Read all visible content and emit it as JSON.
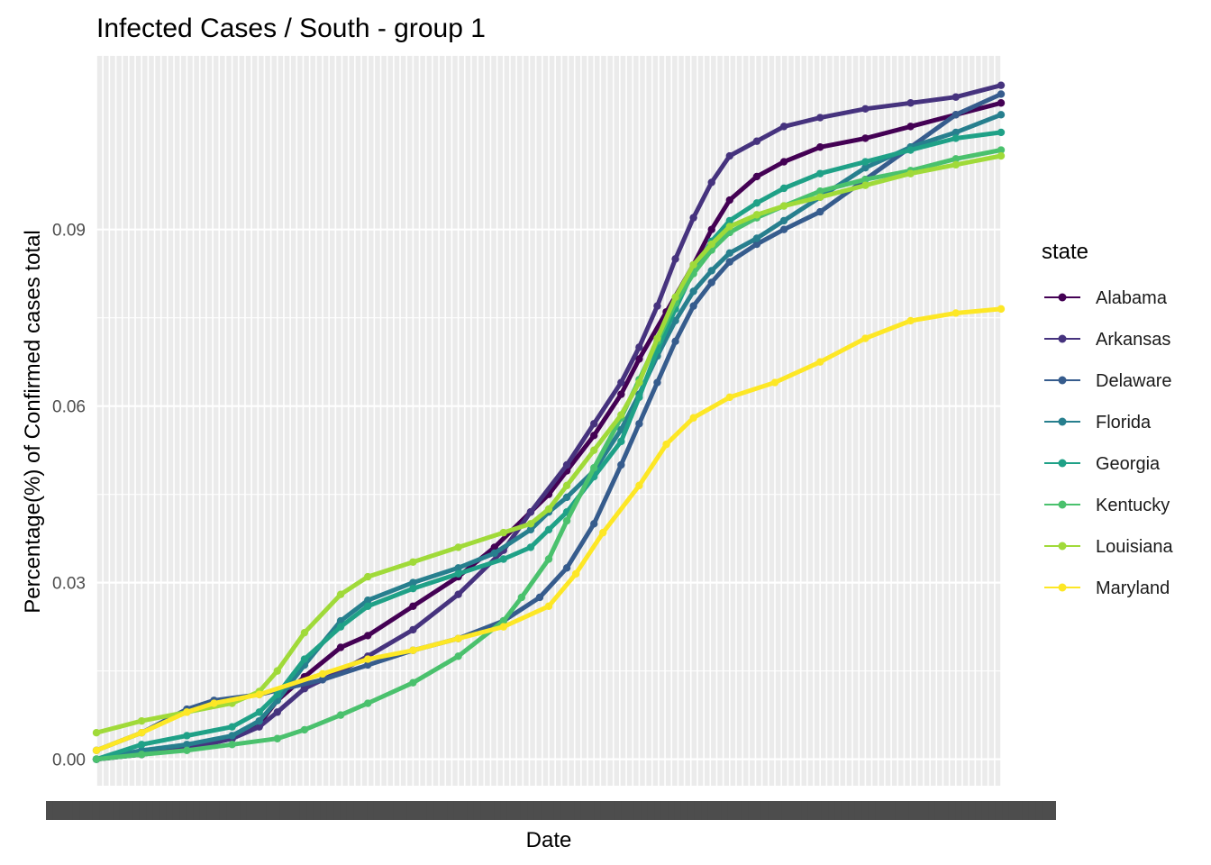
{
  "chart_data": {
    "type": "line",
    "title": "Infected Cases / South - group 1",
    "xlabel": "Date",
    "ylabel": "Percentage(%) of Confirmed cases total",
    "x_range": [
      0,
      1
    ],
    "ylim": [
      -0.0045,
      0.1195
    ],
    "y_ticks": [
      0.0,
      0.03,
      0.06,
      0.09
    ],
    "y_tick_labels": [
      "0.00",
      "0.03",
      "0.06",
      "0.09"
    ],
    "grid": true,
    "panel_background": "#ebebeb",
    "legend": {
      "title": "state",
      "position": "right"
    },
    "series": [
      {
        "name": "Alabama",
        "color": "#440154",
        "points": [
          [
            0,
            0.0
          ],
          [
            0.05,
            0.0008
          ],
          [
            0.1,
            0.0018
          ],
          [
            0.15,
            0.0035
          ],
          [
            0.18,
            0.006
          ],
          [
            0.2,
            0.01
          ],
          [
            0.23,
            0.014
          ],
          [
            0.27,
            0.019
          ],
          [
            0.3,
            0.021
          ],
          [
            0.35,
            0.026
          ],
          [
            0.4,
            0.031
          ],
          [
            0.44,
            0.036
          ],
          [
            0.48,
            0.042
          ],
          [
            0.5,
            0.045
          ],
          [
            0.52,
            0.049
          ],
          [
            0.55,
            0.055
          ],
          [
            0.58,
            0.062
          ],
          [
            0.6,
            0.068
          ],
          [
            0.63,
            0.076
          ],
          [
            0.66,
            0.084
          ],
          [
            0.68,
            0.09
          ],
          [
            0.7,
            0.095
          ],
          [
            0.73,
            0.099
          ],
          [
            0.76,
            0.1015
          ],
          [
            0.8,
            0.104
          ],
          [
            0.85,
            0.1055
          ],
          [
            0.9,
            0.1075
          ],
          [
            0.95,
            0.1095
          ],
          [
            1.0,
            0.1115
          ]
        ]
      },
      {
        "name": "Arkansas",
        "color": "#46337e",
        "points": [
          [
            0,
            0.0
          ],
          [
            0.05,
            0.0008
          ],
          [
            0.1,
            0.0018
          ],
          [
            0.15,
            0.0035
          ],
          [
            0.18,
            0.0055
          ],
          [
            0.2,
            0.008
          ],
          [
            0.23,
            0.012
          ],
          [
            0.27,
            0.015
          ],
          [
            0.3,
            0.0175
          ],
          [
            0.35,
            0.022
          ],
          [
            0.4,
            0.028
          ],
          [
            0.45,
            0.0355
          ],
          [
            0.48,
            0.042
          ],
          [
            0.52,
            0.05
          ],
          [
            0.55,
            0.057
          ],
          [
            0.58,
            0.064
          ],
          [
            0.6,
            0.07
          ],
          [
            0.62,
            0.077
          ],
          [
            0.64,
            0.085
          ],
          [
            0.66,
            0.092
          ],
          [
            0.68,
            0.098
          ],
          [
            0.7,
            0.1025
          ],
          [
            0.73,
            0.105
          ],
          [
            0.76,
            0.1075
          ],
          [
            0.8,
            0.109
          ],
          [
            0.85,
            0.1105
          ],
          [
            0.9,
            0.1115
          ],
          [
            0.95,
            0.1125
          ],
          [
            1.0,
            0.1145
          ]
        ]
      },
      {
        "name": "Delaware",
        "color": "#365c8d",
        "points": [
          [
            0,
            0.0015
          ],
          [
            0.05,
            0.0045
          ],
          [
            0.1,
            0.0085
          ],
          [
            0.13,
            0.01
          ],
          [
            0.18,
            0.011
          ],
          [
            0.25,
            0.0135
          ],
          [
            0.3,
            0.016
          ],
          [
            0.35,
            0.0185
          ],
          [
            0.4,
            0.0205
          ],
          [
            0.45,
            0.0235
          ],
          [
            0.49,
            0.0275
          ],
          [
            0.52,
            0.0325
          ],
          [
            0.55,
            0.04
          ],
          [
            0.58,
            0.05
          ],
          [
            0.6,
            0.057
          ],
          [
            0.62,
            0.064
          ],
          [
            0.64,
            0.071
          ],
          [
            0.66,
            0.077
          ],
          [
            0.68,
            0.081
          ],
          [
            0.7,
            0.0845
          ],
          [
            0.73,
            0.0875
          ],
          [
            0.76,
            0.09
          ],
          [
            0.8,
            0.093
          ],
          [
            0.85,
            0.0985
          ],
          [
            0.9,
            0.104
          ],
          [
            0.95,
            0.1095
          ],
          [
            1.0,
            0.113
          ]
        ]
      },
      {
        "name": "Florida",
        "color": "#277f8e",
        "points": [
          [
            0,
            0.0
          ],
          [
            0.05,
            0.0015
          ],
          [
            0.1,
            0.0025
          ],
          [
            0.15,
            0.004
          ],
          [
            0.18,
            0.0065
          ],
          [
            0.2,
            0.01
          ],
          [
            0.23,
            0.016
          ],
          [
            0.27,
            0.0235
          ],
          [
            0.3,
            0.027
          ],
          [
            0.35,
            0.03
          ],
          [
            0.4,
            0.0325
          ],
          [
            0.44,
            0.035
          ],
          [
            0.48,
            0.039
          ],
          [
            0.5,
            0.042
          ],
          [
            0.52,
            0.0445
          ],
          [
            0.55,
            0.049
          ],
          [
            0.58,
            0.056
          ],
          [
            0.6,
            0.062
          ],
          [
            0.62,
            0.0685
          ],
          [
            0.64,
            0.0745
          ],
          [
            0.66,
            0.0795
          ],
          [
            0.68,
            0.083
          ],
          [
            0.7,
            0.086
          ],
          [
            0.73,
            0.0885
          ],
          [
            0.76,
            0.0915
          ],
          [
            0.8,
            0.0955
          ],
          [
            0.85,
            0.1005
          ],
          [
            0.9,
            0.104
          ],
          [
            0.95,
            0.1065
          ],
          [
            1.0,
            0.1095
          ]
        ]
      },
      {
        "name": "Georgia",
        "color": "#1fa187",
        "points": [
          [
            0,
            0.0
          ],
          [
            0.05,
            0.0025
          ],
          [
            0.1,
            0.004
          ],
          [
            0.15,
            0.0055
          ],
          [
            0.18,
            0.008
          ],
          [
            0.2,
            0.011
          ],
          [
            0.23,
            0.017
          ],
          [
            0.27,
            0.0225
          ],
          [
            0.3,
            0.026
          ],
          [
            0.35,
            0.029
          ],
          [
            0.4,
            0.0315
          ],
          [
            0.45,
            0.034
          ],
          [
            0.48,
            0.036
          ],
          [
            0.5,
            0.039
          ],
          [
            0.52,
            0.042
          ],
          [
            0.55,
            0.048
          ],
          [
            0.58,
            0.054
          ],
          [
            0.6,
            0.0615
          ],
          [
            0.62,
            0.0695
          ],
          [
            0.64,
            0.0765
          ],
          [
            0.66,
            0.083
          ],
          [
            0.68,
            0.088
          ],
          [
            0.7,
            0.0915
          ],
          [
            0.73,
            0.0945
          ],
          [
            0.76,
            0.097
          ],
          [
            0.8,
            0.0995
          ],
          [
            0.85,
            0.1015
          ],
          [
            0.9,
            0.1035
          ],
          [
            0.95,
            0.1055
          ],
          [
            1.0,
            0.1065
          ]
        ]
      },
      {
        "name": "Kentucky",
        "color": "#4ac16d",
        "points": [
          [
            0,
            0.0
          ],
          [
            0.05,
            0.0008
          ],
          [
            0.1,
            0.0015
          ],
          [
            0.15,
            0.0025
          ],
          [
            0.2,
            0.0035
          ],
          [
            0.23,
            0.005
          ],
          [
            0.27,
            0.0075
          ],
          [
            0.3,
            0.0095
          ],
          [
            0.35,
            0.013
          ],
          [
            0.4,
            0.0175
          ],
          [
            0.45,
            0.0235
          ],
          [
            0.47,
            0.0275
          ],
          [
            0.5,
            0.034
          ],
          [
            0.52,
            0.0405
          ],
          [
            0.55,
            0.0495
          ],
          [
            0.58,
            0.058
          ],
          [
            0.6,
            0.0645
          ],
          [
            0.62,
            0.071
          ],
          [
            0.64,
            0.0775
          ],
          [
            0.66,
            0.0825
          ],
          [
            0.68,
            0.0865
          ],
          [
            0.7,
            0.0895
          ],
          [
            0.73,
            0.092
          ],
          [
            0.76,
            0.094
          ],
          [
            0.8,
            0.0965
          ],
          [
            0.85,
            0.0985
          ],
          [
            0.9,
            0.1
          ],
          [
            0.95,
            0.102
          ],
          [
            1.0,
            0.1035
          ]
        ]
      },
      {
        "name": "Louisiana",
        "color": "#a0da39",
        "points": [
          [
            0,
            0.0045
          ],
          [
            0.05,
            0.0065
          ],
          [
            0.1,
            0.008
          ],
          [
            0.15,
            0.0095
          ],
          [
            0.18,
            0.0115
          ],
          [
            0.2,
            0.015
          ],
          [
            0.23,
            0.0215
          ],
          [
            0.27,
            0.028
          ],
          [
            0.3,
            0.031
          ],
          [
            0.35,
            0.0335
          ],
          [
            0.4,
            0.036
          ],
          [
            0.45,
            0.0385
          ],
          [
            0.48,
            0.04
          ],
          [
            0.5,
            0.0425
          ],
          [
            0.52,
            0.0465
          ],
          [
            0.55,
            0.0525
          ],
          [
            0.58,
            0.0585
          ],
          [
            0.6,
            0.064
          ],
          [
            0.62,
            0.0715
          ],
          [
            0.64,
            0.0785
          ],
          [
            0.66,
            0.084
          ],
          [
            0.68,
            0.0875
          ],
          [
            0.7,
            0.0905
          ],
          [
            0.73,
            0.0925
          ],
          [
            0.76,
            0.094
          ],
          [
            0.8,
            0.0955
          ],
          [
            0.85,
            0.0975
          ],
          [
            0.9,
            0.0995
          ],
          [
            0.95,
            0.101
          ],
          [
            1.0,
            0.1025
          ]
        ]
      },
      {
        "name": "Maryland",
        "color": "#fde725",
        "points": [
          [
            0,
            0.0015
          ],
          [
            0.05,
            0.0045
          ],
          [
            0.1,
            0.008
          ],
          [
            0.13,
            0.0095
          ],
          [
            0.18,
            0.011
          ],
          [
            0.25,
            0.0145
          ],
          [
            0.3,
            0.017
          ],
          [
            0.35,
            0.0185
          ],
          [
            0.4,
            0.0205
          ],
          [
            0.45,
            0.0225
          ],
          [
            0.5,
            0.026
          ],
          [
            0.53,
            0.0315
          ],
          [
            0.56,
            0.0385
          ],
          [
            0.6,
            0.0465
          ],
          [
            0.63,
            0.0535
          ],
          [
            0.66,
            0.058
          ],
          [
            0.7,
            0.0615
          ],
          [
            0.75,
            0.064
          ],
          [
            0.8,
            0.0675
          ],
          [
            0.85,
            0.0715
          ],
          [
            0.9,
            0.0745
          ],
          [
            0.95,
            0.0758
          ],
          [
            1.0,
            0.0765
          ]
        ]
      }
    ]
  }
}
